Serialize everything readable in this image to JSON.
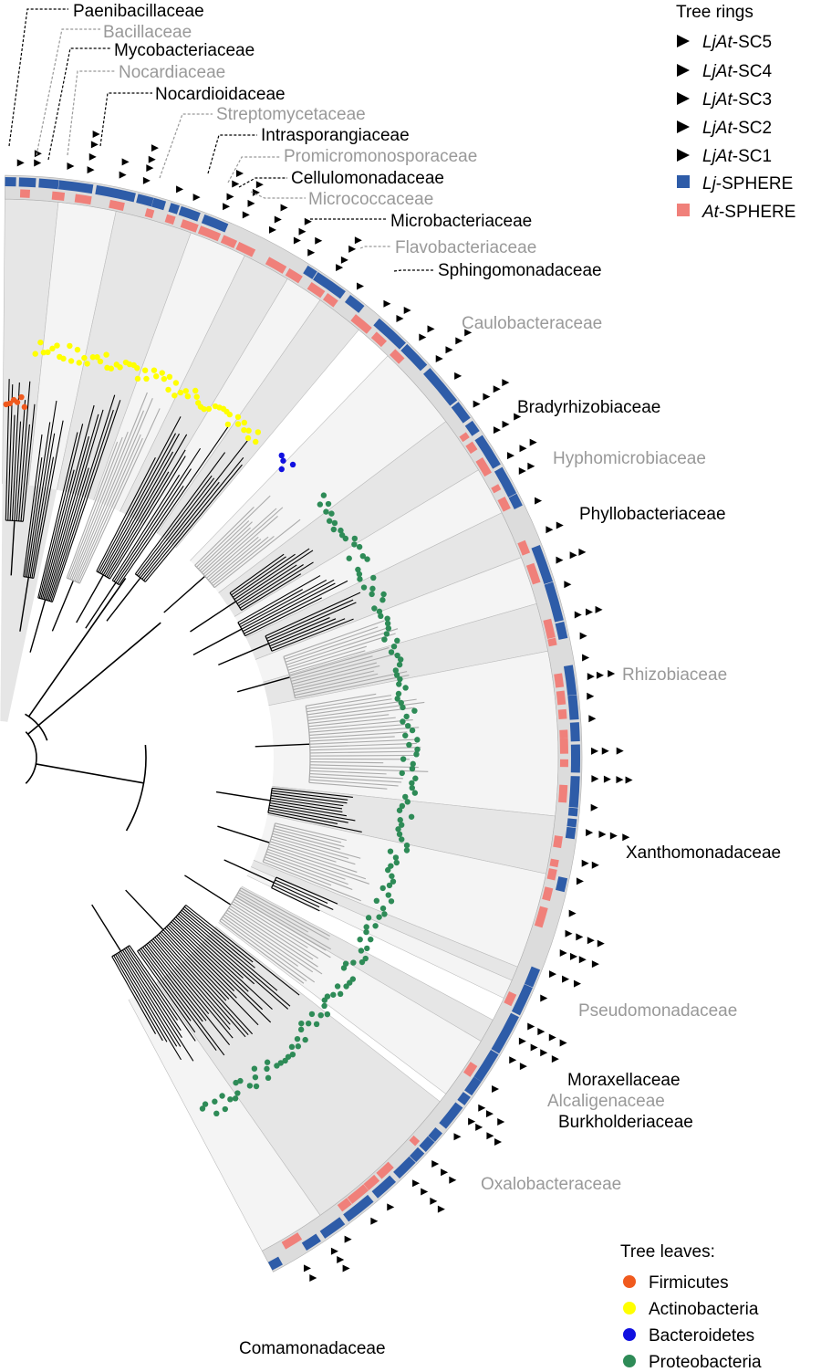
{
  "legend_rings": {
    "title": "Tree rings",
    "items": [
      {
        "prefix": "LjAt",
        "suffix": "-SC5",
        "marker": "triangle-right-icon"
      },
      {
        "prefix": "LjAt",
        "suffix": "-SC4",
        "marker": "triangle-right-icon"
      },
      {
        "prefix": "LjAt",
        "suffix": "-SC3",
        "marker": "triangle-right-icon"
      },
      {
        "prefix": "LjAt",
        "suffix": "-SC2",
        "marker": "triangle-right-icon"
      },
      {
        "prefix": "LjAt",
        "suffix": "-SC1",
        "marker": "triangle-right-icon"
      },
      {
        "prefix": "Lj",
        "suffix": "-SPHERE",
        "marker": "square-icon",
        "color": "#2e5ca8"
      },
      {
        "prefix": "At",
        "suffix": "-SPHERE",
        "marker": "square-icon",
        "color": "#f0807a"
      }
    ]
  },
  "legend_leaves": {
    "title": "Tree leaves:",
    "items": [
      {
        "label": "Firmicutes",
        "color": "#f05a1e"
      },
      {
        "label": "Actinobacteria",
        "color": "#ffff00"
      },
      {
        "label": "Bacteroidetes",
        "color": "#1010e0"
      },
      {
        "label": "Proteobacteria",
        "color": "#2e8b57"
      }
    ]
  },
  "families": [
    {
      "name": "Paenibacillaceae",
      "tone": "dark"
    },
    {
      "name": "Bacillaceae",
      "tone": "gray"
    },
    {
      "name": "Mycobacteriaceae",
      "tone": "dark"
    },
    {
      "name": "Nocardiaceae",
      "tone": "gray"
    },
    {
      "name": "Nocardioidaceae",
      "tone": "dark"
    },
    {
      "name": "Streptomycetaceae",
      "tone": "gray"
    },
    {
      "name": "Intrasporangiaceae",
      "tone": "dark"
    },
    {
      "name": "Promicromonosporaceae",
      "tone": "gray"
    },
    {
      "name": "Cellulomonadaceae",
      "tone": "dark"
    },
    {
      "name": "Micrococcaceae",
      "tone": "gray"
    },
    {
      "name": "Microbacteriaceae",
      "tone": "dark"
    },
    {
      "name": "Flavobacteriaceae",
      "tone": "gray"
    },
    {
      "name": "Sphingomonadaceae",
      "tone": "dark"
    },
    {
      "name": "Caulobacteraceae",
      "tone": "gray"
    },
    {
      "name": "Bradyrhizobiaceae",
      "tone": "dark"
    },
    {
      "name": "Hyphomicrobiaceae",
      "tone": "gray"
    },
    {
      "name": "Phyllobacteriaceae",
      "tone": "dark"
    },
    {
      "name": "Rhizobiaceae",
      "tone": "gray"
    },
    {
      "name": "Xanthomonadaceae",
      "tone": "dark"
    },
    {
      "name": "Pseudomonadaceae",
      "tone": "gray"
    },
    {
      "name": "Moraxellaceae",
      "tone": "dark"
    },
    {
      "name": "Alcaligenaceae",
      "tone": "gray"
    },
    {
      "name": "Burkholderiaceae",
      "tone": "dark"
    },
    {
      "name": "Oxalobacteraceae",
      "tone": "gray"
    },
    {
      "name": "Comamonadaceae",
      "tone": "dark"
    }
  ],
  "colors": {
    "label_dark": "#000000",
    "label_gray": "#999999",
    "clade_dark": "#e6e6e6",
    "clade_light": "#f4f4f4",
    "lj_ring": "#2e5ca8",
    "at_ring": "#f0807a",
    "branch": "#000000",
    "branch_gray": "#aaaaaa"
  }
}
